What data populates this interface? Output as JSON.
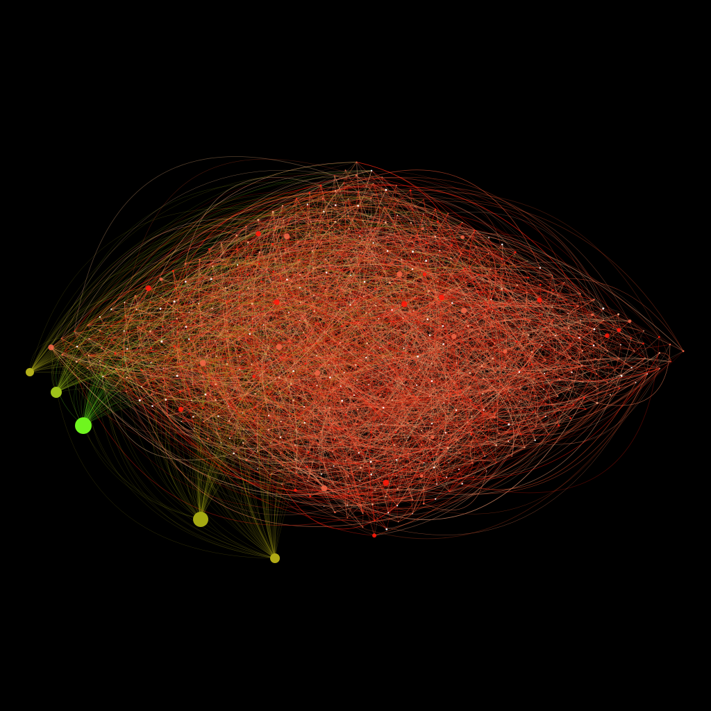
{
  "graph": {
    "description_free": true,
    "background_color": "#000000",
    "edge_colors": [
      "#ff1a0a",
      "#e8532f",
      "#f07a52",
      "#f39a72",
      "#c8411e",
      "#a8160a",
      "#d6a070"
    ],
    "hub_nodes": [
      {
        "color": "#6ff51f",
        "size_rank": 1
      },
      {
        "color": "#a3a812",
        "size_rank": 2
      },
      {
        "color": "#9ec21a",
        "size_rank": 4
      },
      {
        "color": "#b3b01a",
        "size_rank": 5
      },
      {
        "color": "#b0a915",
        "size_rank": 5
      }
    ],
    "node_colors": [
      "#ff1a0a",
      "#f06545",
      "#f4b08a",
      "#ffffff"
    ]
  }
}
